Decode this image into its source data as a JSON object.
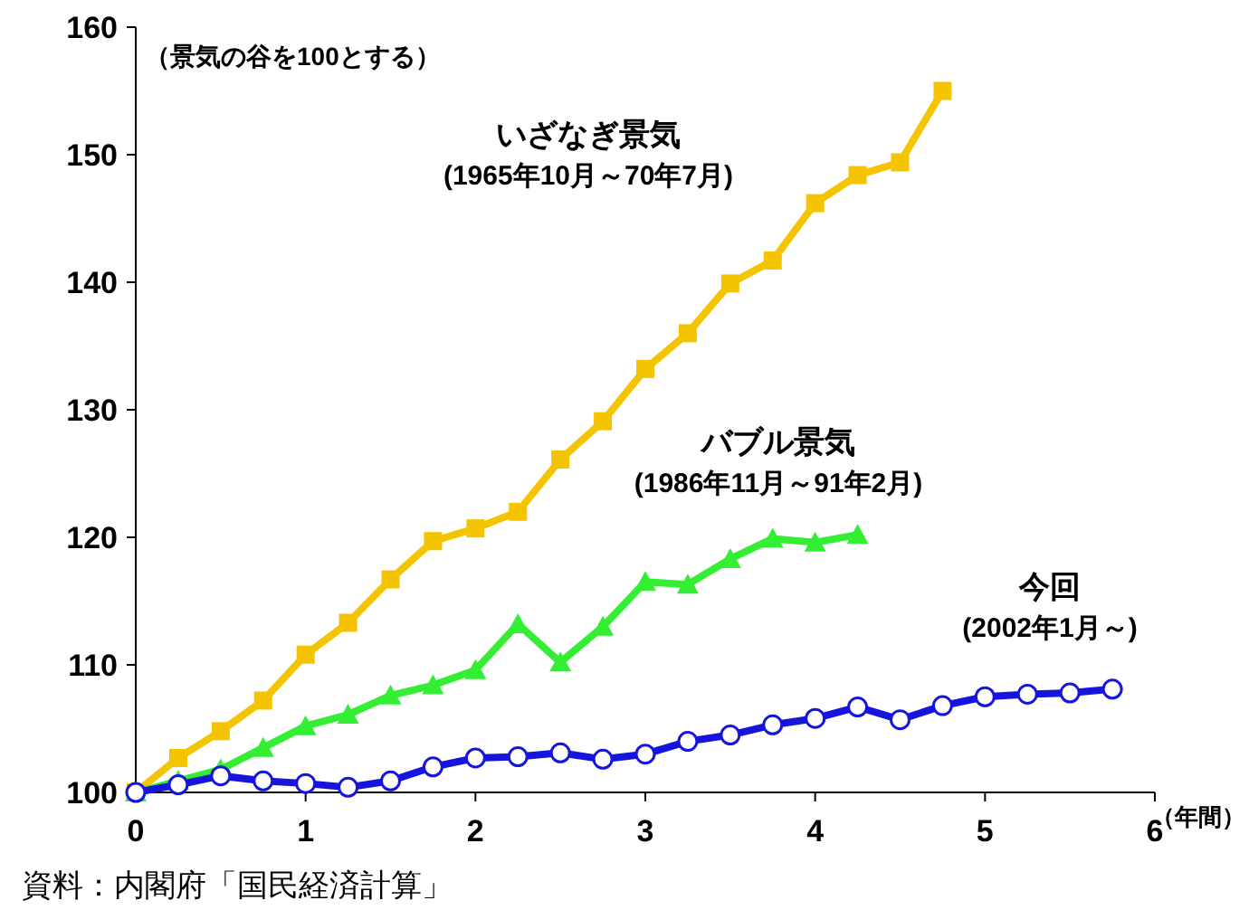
{
  "chart_data": {
    "type": "line",
    "ylabel": "（景気の谷を100とする）",
    "xlabel": "（年間）",
    "annotations": [
      "資料：内閣府「国民経済計算」"
    ],
    "xlim": [
      0,
      6
    ],
    "xticks": [
      0,
      1,
      2,
      3,
      4,
      5,
      6
    ],
    "ylim": [
      100,
      160
    ],
    "yticks": [
      100,
      110,
      120,
      130,
      140,
      150,
      160
    ],
    "grid": false,
    "series": [
      {
        "name": "いざなぎ景気\n(1965年10月～70年7月)",
        "color": "#f5c400",
        "marker": "square",
        "x": [
          0,
          0.25,
          0.5,
          0.75,
          1,
          1.25,
          1.5,
          1.75,
          2,
          2.25,
          2.5,
          2.75,
          3,
          3.25,
          3.5,
          3.75,
          4,
          4.25,
          4.5,
          4.75
        ],
        "values": [
          100,
          102.7,
          104.8,
          107.2,
          110.8,
          113.3,
          116.7,
          119.7,
          120.7,
          122.0,
          126.1,
          129.1,
          133.2,
          136.0,
          139.9,
          141.7,
          146.2,
          148.4,
          149.4,
          155.0
        ]
      },
      {
        "name": "バブル景気\n(1986年11月～91年2月)",
        "color": "#33ee33",
        "marker": "triangle",
        "x": [
          0,
          0.25,
          0.5,
          0.75,
          1,
          1.25,
          1.5,
          1.75,
          2,
          2.25,
          2.5,
          2.75,
          3,
          3.25,
          3.5,
          3.75,
          4,
          4.25
        ],
        "values": [
          100,
          100.9,
          101.8,
          103.5,
          105.2,
          106.1,
          107.6,
          108.4,
          109.6,
          113.2,
          110.2,
          113.0,
          116.5,
          116.3,
          118.3,
          119.9,
          119.6,
          120.2
        ]
      },
      {
        "name": "今回\n(2002年1月～)",
        "color": "#1515dd",
        "marker": "circle",
        "x": [
          0,
          0.25,
          0.5,
          0.75,
          1,
          1.25,
          1.5,
          1.75,
          2,
          2.25,
          2.5,
          2.75,
          3,
          3.25,
          3.5,
          3.75,
          4,
          4.25,
          4.5,
          4.75,
          5,
          5.25,
          5.5,
          5.75
        ],
        "values": [
          100,
          100.6,
          101.3,
          100.9,
          100.7,
          100.4,
          100.9,
          102.0,
          102.7,
          102.8,
          103.1,
          102.6,
          103.0,
          104.0,
          104.5,
          105.3,
          105.8,
          106.7,
          105.7,
          106.8,
          107.5,
          107.7,
          107.8,
          108.1
        ]
      }
    ]
  }
}
